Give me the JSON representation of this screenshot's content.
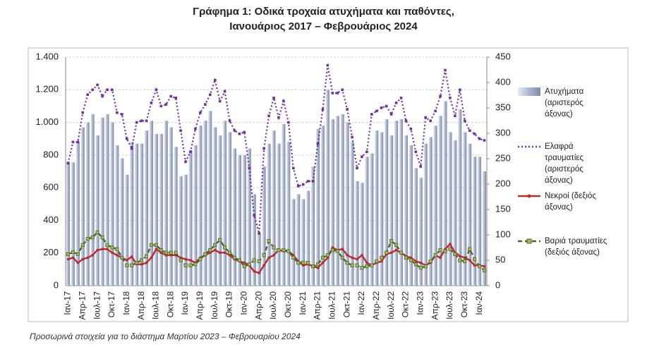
{
  "chart_data": {
    "type": "bar",
    "title": "Γράφημα 1: Οδικά τροχαία ατυχήματα και παθόντες,",
    "subtitle": "Ιανουάριος 2017 – Φεβρουάριος 2024",
    "note": "Προσωρινά στοιχεία για το διάστημα Μαρτίου 2023 – Φεβρουαρίου 2024",
    "categories": [
      "Ιαν-17",
      null,
      null,
      "Απρ-17",
      null,
      null,
      "Ιουλ-17",
      null,
      null,
      "Οκτ-17",
      null,
      null,
      "Ιαν-18",
      null,
      null,
      "Απρ-18",
      null,
      null,
      "Ιουλ-18",
      null,
      null,
      "Οκτ-18",
      null,
      null,
      "Ιαν-19",
      null,
      null,
      "Απρ-19",
      null,
      null,
      "Ιουλ-19",
      null,
      null,
      "Οκτ-19",
      null,
      null,
      "Ιαν-20",
      null,
      null,
      "Απρ-20",
      null,
      null,
      "Ιουλ-20",
      null,
      null,
      "Οκτ-20",
      null,
      null,
      "Ιαν-21",
      null,
      null,
      "Απρ-21",
      null,
      null,
      "Ιουλ-21",
      null,
      null,
      "Οκτ-21",
      null,
      null,
      "Ιαν-22",
      null,
      null,
      "Απρ-22",
      null,
      null,
      "Ιουλ-22",
      null,
      null,
      "Οκτ-22",
      null,
      null,
      "Ιαν-23",
      null,
      null,
      "Απρ-23",
      null,
      null,
      "Ιουλ-23",
      null,
      null,
      "Οκτ-23",
      null,
      null,
      "Ιαν-24",
      null
    ],
    "ylim": [
      0,
      1400
    ],
    "yticks": [
      0,
      200,
      400,
      600,
      800,
      {
        "value": 1000,
        "label": "1.000"
      },
      {
        "value": 1200,
        "label": "1.200"
      },
      {
        "value": 1400,
        "label": "1.400"
      }
    ],
    "y2lim": [
      0,
      450
    ],
    "y2ticks": [
      0,
      50,
      100,
      150,
      200,
      250,
      300,
      350,
      400,
      450
    ],
    "grid": true,
    "legend": "right",
    "series": [
      {
        "name": "Ατυχήματα (αριστερός άξονας)",
        "type": "bar",
        "color": "#a9b5d3",
        "values": [
          760,
          755,
          880,
          970,
          1000,
          1050,
          920,
          1030,
          1050,
          1000,
          860,
          780,
          680,
          880,
          870,
          870,
          950,
          1010,
          930,
          930,
          1010,
          970,
          850,
          670,
          680,
          830,
          860,
          980,
          1010,
          1070,
          970,
          920,
          1010,
          940,
          840,
          800,
          800,
          840,
          560,
          320,
          730,
          870,
          950,
          870,
          990,
          880,
          530,
          560,
          530,
          580,
          730,
          960,
          980,
          1200,
          1020,
          1040,
          1050,
          1000,
          880,
          640,
          630,
          790,
          810,
          950,
          940,
          1020,
          920,
          1010,
          1020,
          920,
          860,
          720,
          660,
          870,
          910,
          980,
          1040,
          1130,
          940,
          890,
          1080,
          940,
          870,
          790,
          790,
          700
        ]
      },
      {
        "name": "Ελαφρά τραυματίες (αριστερός άξονας)",
        "type": "line",
        "style": "dotted",
        "color": "#7030a0",
        "values": [
          750,
          880,
          880,
          1060,
          1170,
          1200,
          1230,
          1160,
          1200,
          1200,
          1060,
          1050,
          900,
          840,
          1000,
          1010,
          1010,
          1120,
          1200,
          1100,
          1110,
          1160,
          1150,
          950,
          760,
          820,
          960,
          1060,
          1110,
          1170,
          1260,
          1130,
          1190,
          1010,
          950,
          930,
          940,
          720,
          430,
          320,
          840,
          1040,
          1150,
          1030,
          1130,
          1000,
          720,
          610,
          620,
          640,
          640,
          870,
          1080,
          1350,
          1180,
          1180,
          1200,
          1080,
          910,
          720,
          790,
          820,
          1050,
          1070,
          1090,
          1100,
          1050,
          1120,
          1150,
          1010,
          960,
          820,
          730,
          1030,
          1010,
          1070,
          1160,
          1320,
          1150,
          1040,
          1200,
          1010,
          950,
          930,
          900,
          890
        ]
      },
      {
        "name": "Νεκροί (δεξιός άξονας)",
        "type": "line",
        "style": "solid",
        "axis": "y2",
        "color": "#c0282d",
        "values": [
          52,
          55,
          45,
          52,
          55,
          60,
          70,
          72,
          72,
          65,
          60,
          55,
          50,
          57,
          42,
          42,
          45,
          55,
          72,
          65,
          60,
          60,
          60,
          55,
          52,
          50,
          45,
          55,
          60,
          65,
          70,
          65,
          65,
          60,
          52,
          48,
          45,
          40,
          28,
          25,
          40,
          55,
          60,
          70,
          68,
          68,
          60,
          48,
          40,
          42,
          38,
          35,
          45,
          55,
          75,
          70,
          72,
          60,
          55,
          52,
          60,
          45,
          40,
          45,
          48,
          62,
          65,
          70,
          65,
          58,
          55,
          48,
          45,
          40,
          45,
          60,
          55,
          72,
          82,
          65,
          58,
          55,
          50,
          40,
          40,
          38
        ]
      },
      {
        "name": "Βαριά τραυματίες (δεξιός άξονας)",
        "type": "line",
        "style": "dashed",
        "axis": "y2",
        "color": "#4f6228",
        "values": [
          62,
          66,
          62,
          80,
          92,
          95,
          105,
          95,
          80,
          75,
          72,
          55,
          40,
          40,
          45,
          50,
          58,
          80,
          80,
          70,
          65,
          65,
          65,
          50,
          40,
          40,
          42,
          52,
          62,
          70,
          80,
          90,
          75,
          65,
          55,
          50,
          38,
          42,
          50,
          48,
          60,
          88,
          75,
          70,
          70,
          68,
          55,
          45,
          45,
          45,
          38,
          42,
          55,
          60,
          70,
          68,
          55,
          45,
          40,
          40,
          35,
          38,
          40,
          48,
          55,
          65,
          88,
          80,
          65,
          55,
          50,
          42,
          35,
          38,
          48,
          60,
          70,
          68,
          72,
          62,
          50,
          48,
          72,
          52,
          38,
          30
        ]
      }
    ]
  }
}
